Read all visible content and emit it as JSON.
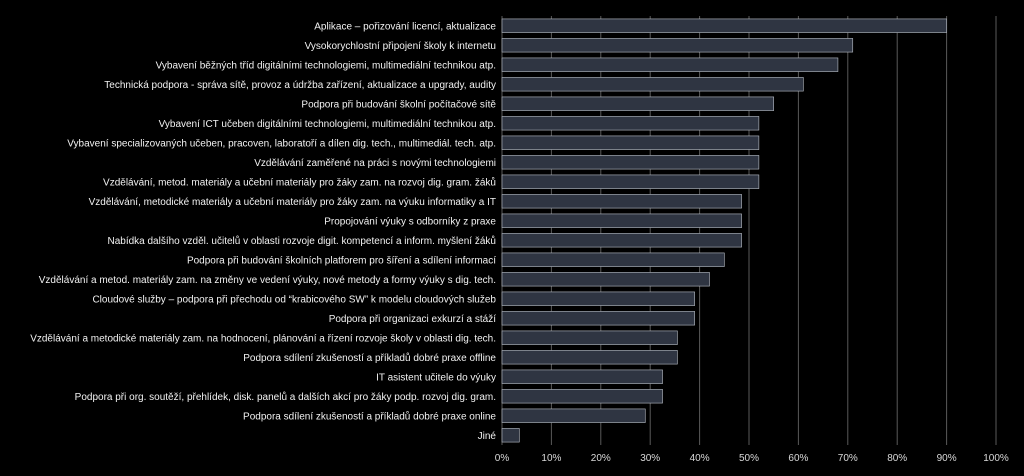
{
  "chart_data": {
    "type": "bar",
    "orientation": "horizontal",
    "categories": [
      "Aplikace – pořizování licencí, aktualizace",
      "Vysokorychlostní připojení školy k internetu",
      "Vybavení běžných tříd digitálními technologiemi, multimediální technikou atp.",
      "Technická podpora - správa sítě, provoz a údržba zařízení, aktualizace a upgrady, audity",
      "Podpora při budování školní počítačové sítě",
      "Vybavení ICT učeben digitálními technologiemi, multimediální technikou atp.",
      "Vybavení specializovaných učeben, pracoven, laboratoří a dílen dig. tech., multimediál. tech. atp.",
      "Vzdělávání zaměřené na práci s novými technologiemi",
      "Vzdělávání, metod. materiály a učební materiály pro žáky zam. na rozvoj dig. gram. žáků",
      "Vzdělávání, metodické materiály a učební materiály pro žáky zam. na výuku informatiky a IT",
      "Propojování výuky s odborníky z praxe",
      "Nabídka dalšího vzděl. učitelů v oblasti rozvoje digit. kompetencí a inform. myšlení žáků",
      "Podpora při budování školních platforem pro šíření a sdílení informací",
      "Vzdělávání a metod. materiály zam. na změny ve vedení výuky, nové metody a formy výuky s dig. tech.",
      "Cloudové služby – podpora při přechodu od “krabicového SW” k modelu cloudových služeb",
      "Podpora při organizaci exkurzí a stáží",
      "Vzdělávání a metodické materiály zam. na hodnocení, plánování a řízení rozvoje školy v oblasti dig. tech.",
      "Podpora sdílení zkušeností a příkladů dobré praxe offline",
      "IT asistent učitele do výuky",
      "Podpora při org. soutěží, přehlídek, disk. panelů a dalších akcí pro žáky podp. rozvoj dig. gram.",
      "Podpora sdílení zkušeností a příkladů dobré praxe online",
      "Jiné"
    ],
    "values": [
      90,
      71,
      68,
      61,
      55,
      52,
      52,
      52,
      52,
      48.5,
      48.5,
      48.5,
      45,
      42,
      39,
      39,
      35.5,
      35.5,
      32.5,
      32.5,
      29,
      3.5
    ],
    "xlim": [
      0,
      100
    ],
    "x_ticks": [
      "0%",
      "10%",
      "20%",
      "30%",
      "40%",
      "50%",
      "60%",
      "70%",
      "80%",
      "90%",
      "100%"
    ],
    "grid": true,
    "colors": {
      "bar_fill": "#2f3542",
      "bar_edge": "#b9bec7",
      "grid": "#5a5a5a",
      "text": "#f2f2f2"
    }
  }
}
